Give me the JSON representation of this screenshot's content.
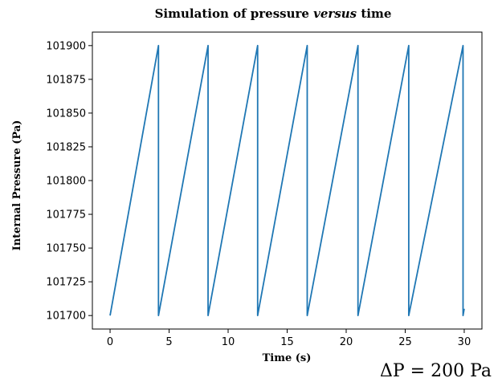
{
  "chart_data": {
    "type": "line",
    "title": "Simulation of pressure versus time",
    "title_prefix": "Simulation of pressure ",
    "title_emphasis": "versus",
    "title_suffix": " time",
    "xlabel": "Time (s)",
    "ylabel": "Internal Pressure (Pa)",
    "xlim": [
      -1.5,
      31.5
    ],
    "ylim": [
      101690,
      101910
    ],
    "x_ticks": [
      0,
      5,
      10,
      15,
      20,
      25,
      30
    ],
    "y_ticks": [
      101700,
      101725,
      101750,
      101775,
      101800,
      101825,
      101850,
      101875,
      101900
    ],
    "grid": false,
    "series": [
      {
        "color": "#1f77b4",
        "x": [
          0,
          4.1,
          4.1,
          8.3,
          8.3,
          12.5,
          12.5,
          16.7,
          16.7,
          21.0,
          21.0,
          25.3,
          25.3,
          29.9,
          29.9,
          30.0
        ],
        "y": [
          101700,
          101900,
          101700,
          101900,
          101700,
          101900,
          101700,
          101900,
          101700,
          101900,
          101700,
          101900,
          101700,
          101900,
          101700,
          101705
        ]
      }
    ],
    "annotation": "ΔP = 200 Pa"
  }
}
